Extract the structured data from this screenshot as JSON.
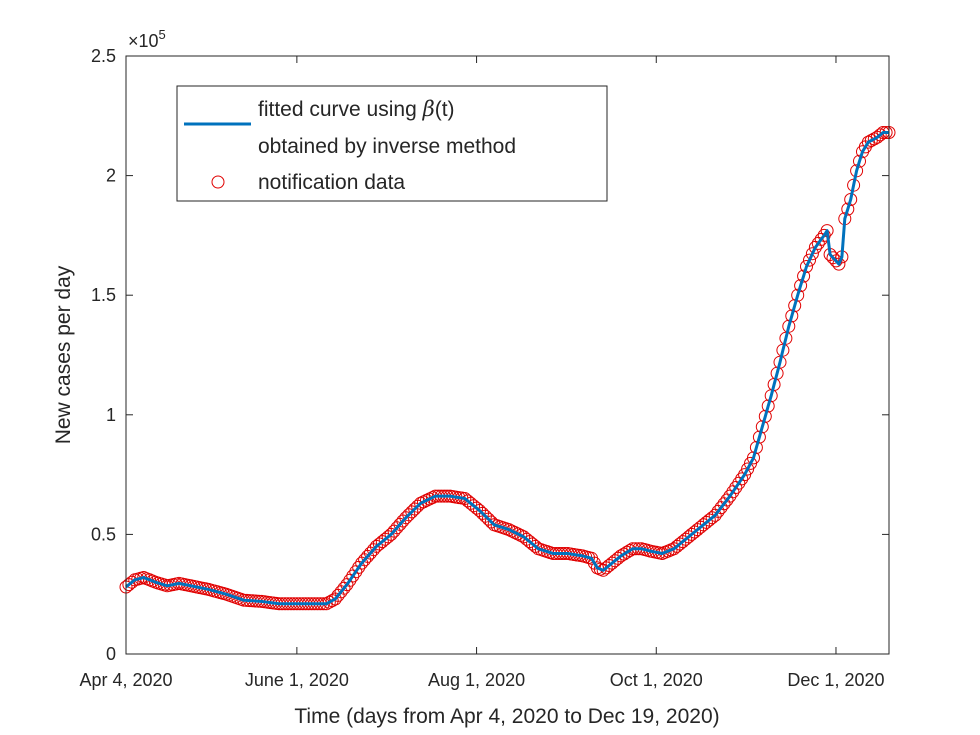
{
  "chart_data": {
    "type": "line",
    "title": "",
    "xlabel": "Time (days from Apr 4, 2020 to Dec 19, 2020)",
    "ylabel": "New cases per day",
    "x_range_days": [
      0,
      259
    ],
    "ylim": [
      0,
      250000
    ],
    "y_exponent_label": "×10",
    "y_exponent_power": "5",
    "x_ticks": [
      {
        "day": 0,
        "label": "Apr 4, 2020"
      },
      {
        "day": 58,
        "label": "June 1, 2020"
      },
      {
        "day": 119,
        "label": "Aug 1, 2020"
      },
      {
        "day": 180,
        "label": "Oct 1, 2020"
      },
      {
        "day": 241,
        "label": "Dec 1, 2020"
      }
    ],
    "y_ticks": [
      {
        "value": 0,
        "label": "0"
      },
      {
        "value": 50000,
        "label": "0.5"
      },
      {
        "value": 100000,
        "label": "1"
      },
      {
        "value": 150000,
        "label": "1.5"
      },
      {
        "value": 200000,
        "label": "2"
      },
      {
        "value": 250000,
        "label": "2.5"
      }
    ],
    "legend": {
      "placement": "top-left",
      "entries": [
        {
          "line1": "fitted curve using ",
          "symbol": "β",
          "line1_suffix": "(t)",
          "line2": "obtained by inverse method"
        },
        {
          "label": "notification data"
        }
      ]
    },
    "colors": {
      "fit_line": "#0072BD",
      "markers": "#E00000",
      "axes": "#262626"
    },
    "series": [
      {
        "name": "notification data",
        "style": "markers",
        "anchors": [
          [
            0,
            28000
          ],
          [
            3,
            31000
          ],
          [
            6,
            32000
          ],
          [
            10,
            30000
          ],
          [
            14,
            28500
          ],
          [
            18,
            29500
          ],
          [
            22,
            28500
          ],
          [
            28,
            27000
          ],
          [
            34,
            25000
          ],
          [
            40,
            22500
          ],
          [
            46,
            22000
          ],
          [
            52,
            21000
          ],
          [
            58,
            21000
          ],
          [
            64,
            21000
          ],
          [
            68,
            21000
          ],
          [
            71,
            23000
          ],
          [
            75,
            29000
          ],
          [
            80,
            38000
          ],
          [
            85,
            45000
          ],
          [
            90,
            50000
          ],
          [
            95,
            57000
          ],
          [
            100,
            63000
          ],
          [
            105,
            66000
          ],
          [
            110,
            66000
          ],
          [
            115,
            65000
          ],
          [
            120,
            60000
          ],
          [
            125,
            54000
          ],
          [
            130,
            52000
          ],
          [
            135,
            49000
          ],
          [
            140,
            44000
          ],
          [
            145,
            42000
          ],
          [
            150,
            42000
          ],
          [
            155,
            41000
          ],
          [
            158,
            40000
          ],
          [
            160,
            36000
          ],
          [
            162,
            35000
          ],
          [
            165,
            38000
          ],
          [
            168,
            41000
          ],
          [
            172,
            44000
          ],
          [
            175,
            44000
          ],
          [
            178,
            43000
          ],
          [
            182,
            42000
          ],
          [
            186,
            44000
          ],
          [
            190,
            48000
          ],
          [
            195,
            53000
          ],
          [
            200,
            58000
          ],
          [
            205,
            66000
          ],
          [
            210,
            75000
          ],
          [
            213,
            82000
          ],
          [
            216,
            95000
          ],
          [
            219,
            108000
          ],
          [
            222,
            122000
          ],
          [
            225,
            137000
          ],
          [
            228,
            150000
          ],
          [
            231,
            162000
          ],
          [
            234,
            170000
          ],
          [
            237,
            175000
          ],
          [
            238,
            177000
          ],
          [
            239,
            167000
          ],
          [
            242,
            163000
          ],
          [
            243,
            166000
          ],
          [
            244,
            182000
          ],
          [
            246,
            190000
          ],
          [
            248,
            202000
          ],
          [
            250,
            210000
          ],
          [
            252,
            214000
          ],
          [
            255,
            216000
          ],
          [
            257,
            218000
          ],
          [
            259,
            218000
          ]
        ]
      },
      {
        "name": "fitted curve using β(t) obtained by inverse method",
        "style": "line",
        "source": "same anchors, interpolated daily"
      }
    ]
  }
}
